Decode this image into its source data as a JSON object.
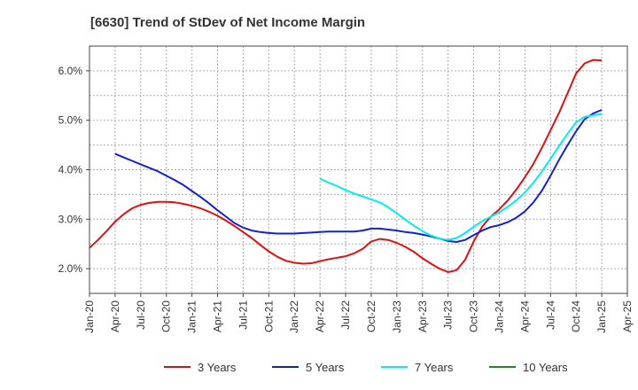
{
  "chart_data": {
    "type": "line",
    "title": "[6630]  Trend of StDev of Net Income Margin",
    "xlabel": "",
    "ylabel": "",
    "x_ticks": [
      "Jan-20",
      "Apr-20",
      "Jul-20",
      "Oct-20",
      "Jan-21",
      "Apr-21",
      "Jul-21",
      "Oct-21",
      "Jan-22",
      "Apr-22",
      "Jul-22",
      "Oct-22",
      "Jan-23",
      "Apr-23",
      "Jul-23",
      "Oct-23",
      "Jan-24",
      "Apr-24",
      "Jul-24",
      "Oct-24",
      "Jan-25",
      "Apr-25"
    ],
    "y_ticks": [
      "2.0%",
      "3.0%",
      "4.0%",
      "5.0%",
      "6.0%"
    ],
    "y_tick_values": [
      2.0,
      3.0,
      4.0,
      5.0,
      6.0
    ],
    "ylim": [
      1.5,
      6.5
    ],
    "grid": true,
    "legend_position": "bottom",
    "series": [
      {
        "name": "3 Years",
        "color": "#dd1111",
        "x": [
          "2020-01",
          "2020-02",
          "2020-03",
          "2020-04",
          "2020-05",
          "2020-06",
          "2020-07",
          "2020-08",
          "2020-09",
          "2020-10",
          "2020-11",
          "2020-12",
          "2021-01",
          "2021-02",
          "2021-03",
          "2021-04",
          "2021-05",
          "2021-06",
          "2021-07",
          "2021-08",
          "2021-09",
          "2021-10",
          "2021-11",
          "2021-12",
          "2022-01",
          "2022-02",
          "2022-03",
          "2022-04",
          "2022-05",
          "2022-06",
          "2022-07",
          "2022-08",
          "2022-09",
          "2022-10",
          "2022-11",
          "2022-12",
          "2023-01",
          "2023-02",
          "2023-03",
          "2023-04",
          "2023-05",
          "2023-06",
          "2023-07",
          "2023-08",
          "2023-09",
          "2023-10",
          "2023-11",
          "2023-12",
          "2024-01",
          "2024-02",
          "2024-03",
          "2024-04",
          "2024-05",
          "2024-06",
          "2024-07",
          "2024-08",
          "2024-09",
          "2024-10",
          "2024-11",
          "2024-12",
          "2025-01"
        ],
        "values": [
          2.42,
          2.58,
          2.76,
          2.95,
          3.1,
          3.22,
          3.29,
          3.33,
          3.35,
          3.35,
          3.34,
          3.31,
          3.27,
          3.22,
          3.15,
          3.07,
          2.97,
          2.86,
          2.74,
          2.62,
          2.48,
          2.35,
          2.24,
          2.16,
          2.12,
          2.1,
          2.11,
          2.15,
          2.19,
          2.22,
          2.25,
          2.31,
          2.4,
          2.55,
          2.6,
          2.58,
          2.52,
          2.44,
          2.34,
          2.21,
          2.1,
          2.0,
          1.93,
          1.97,
          2.18,
          2.55,
          2.85,
          3.05,
          3.2,
          3.38,
          3.6,
          3.85,
          4.12,
          4.45,
          4.8,
          5.15,
          5.55,
          5.95,
          6.15,
          6.22,
          6.21
        ]
      },
      {
        "name": "5 Years",
        "color": "#1122cc",
        "x": [
          "2020-04",
          "2020-05",
          "2020-06",
          "2020-07",
          "2020-08",
          "2020-09",
          "2020-10",
          "2020-11",
          "2020-12",
          "2021-01",
          "2021-02",
          "2021-03",
          "2021-04",
          "2021-05",
          "2021-06",
          "2021-07",
          "2021-08",
          "2021-09",
          "2021-10",
          "2021-11",
          "2021-12",
          "2022-01",
          "2022-02",
          "2022-03",
          "2022-04",
          "2022-05",
          "2022-06",
          "2022-07",
          "2022-08",
          "2022-09",
          "2022-10",
          "2022-11",
          "2022-12",
          "2023-01",
          "2023-02",
          "2023-03",
          "2023-04",
          "2023-05",
          "2023-06",
          "2023-07",
          "2023-08",
          "2023-09",
          "2023-10",
          "2023-11",
          "2023-12",
          "2024-01",
          "2024-02",
          "2024-03",
          "2024-04",
          "2024-05",
          "2024-06",
          "2024-07",
          "2024-08",
          "2024-09",
          "2024-10",
          "2024-11",
          "2024-12",
          "2025-01"
        ],
        "values": [
          4.32,
          4.25,
          4.18,
          4.11,
          4.04,
          3.97,
          3.88,
          3.79,
          3.69,
          3.57,
          3.45,
          3.32,
          3.18,
          3.05,
          2.92,
          2.83,
          2.77,
          2.74,
          2.72,
          2.71,
          2.71,
          2.71,
          2.72,
          2.73,
          2.74,
          2.75,
          2.75,
          2.75,
          2.75,
          2.77,
          2.81,
          2.81,
          2.79,
          2.77,
          2.74,
          2.72,
          2.69,
          2.65,
          2.61,
          2.56,
          2.54,
          2.58,
          2.68,
          2.77,
          2.84,
          2.88,
          2.94,
          3.03,
          3.16,
          3.34,
          3.58,
          3.88,
          4.2,
          4.5,
          4.78,
          5.02,
          5.14,
          5.21
        ]
      },
      {
        "name": "7 Years",
        "color": "#00eeee",
        "x": [
          "2022-04",
          "2022-05",
          "2022-06",
          "2022-07",
          "2022-08",
          "2022-09",
          "2022-10",
          "2022-11",
          "2022-12",
          "2023-01",
          "2023-02",
          "2023-03",
          "2023-04",
          "2023-05",
          "2023-06",
          "2023-07",
          "2023-08",
          "2023-09",
          "2023-10",
          "2023-11",
          "2023-12",
          "2024-01",
          "2024-02",
          "2024-03",
          "2024-04",
          "2024-05",
          "2024-06",
          "2024-07",
          "2024-08",
          "2024-09",
          "2024-10",
          "2024-11",
          "2024-12",
          "2025-01"
        ],
        "values": [
          3.82,
          3.74,
          3.67,
          3.59,
          3.52,
          3.46,
          3.4,
          3.34,
          3.24,
          3.12,
          2.99,
          2.87,
          2.76,
          2.67,
          2.61,
          2.58,
          2.62,
          2.72,
          2.85,
          2.96,
          3.05,
          3.14,
          3.25,
          3.38,
          3.54,
          3.74,
          3.97,
          4.22,
          4.48,
          4.73,
          4.96,
          5.07,
          5.1,
          5.13
        ]
      },
      {
        "name": "10 Years",
        "color": "#228822",
        "x": [],
        "values": []
      }
    ]
  }
}
